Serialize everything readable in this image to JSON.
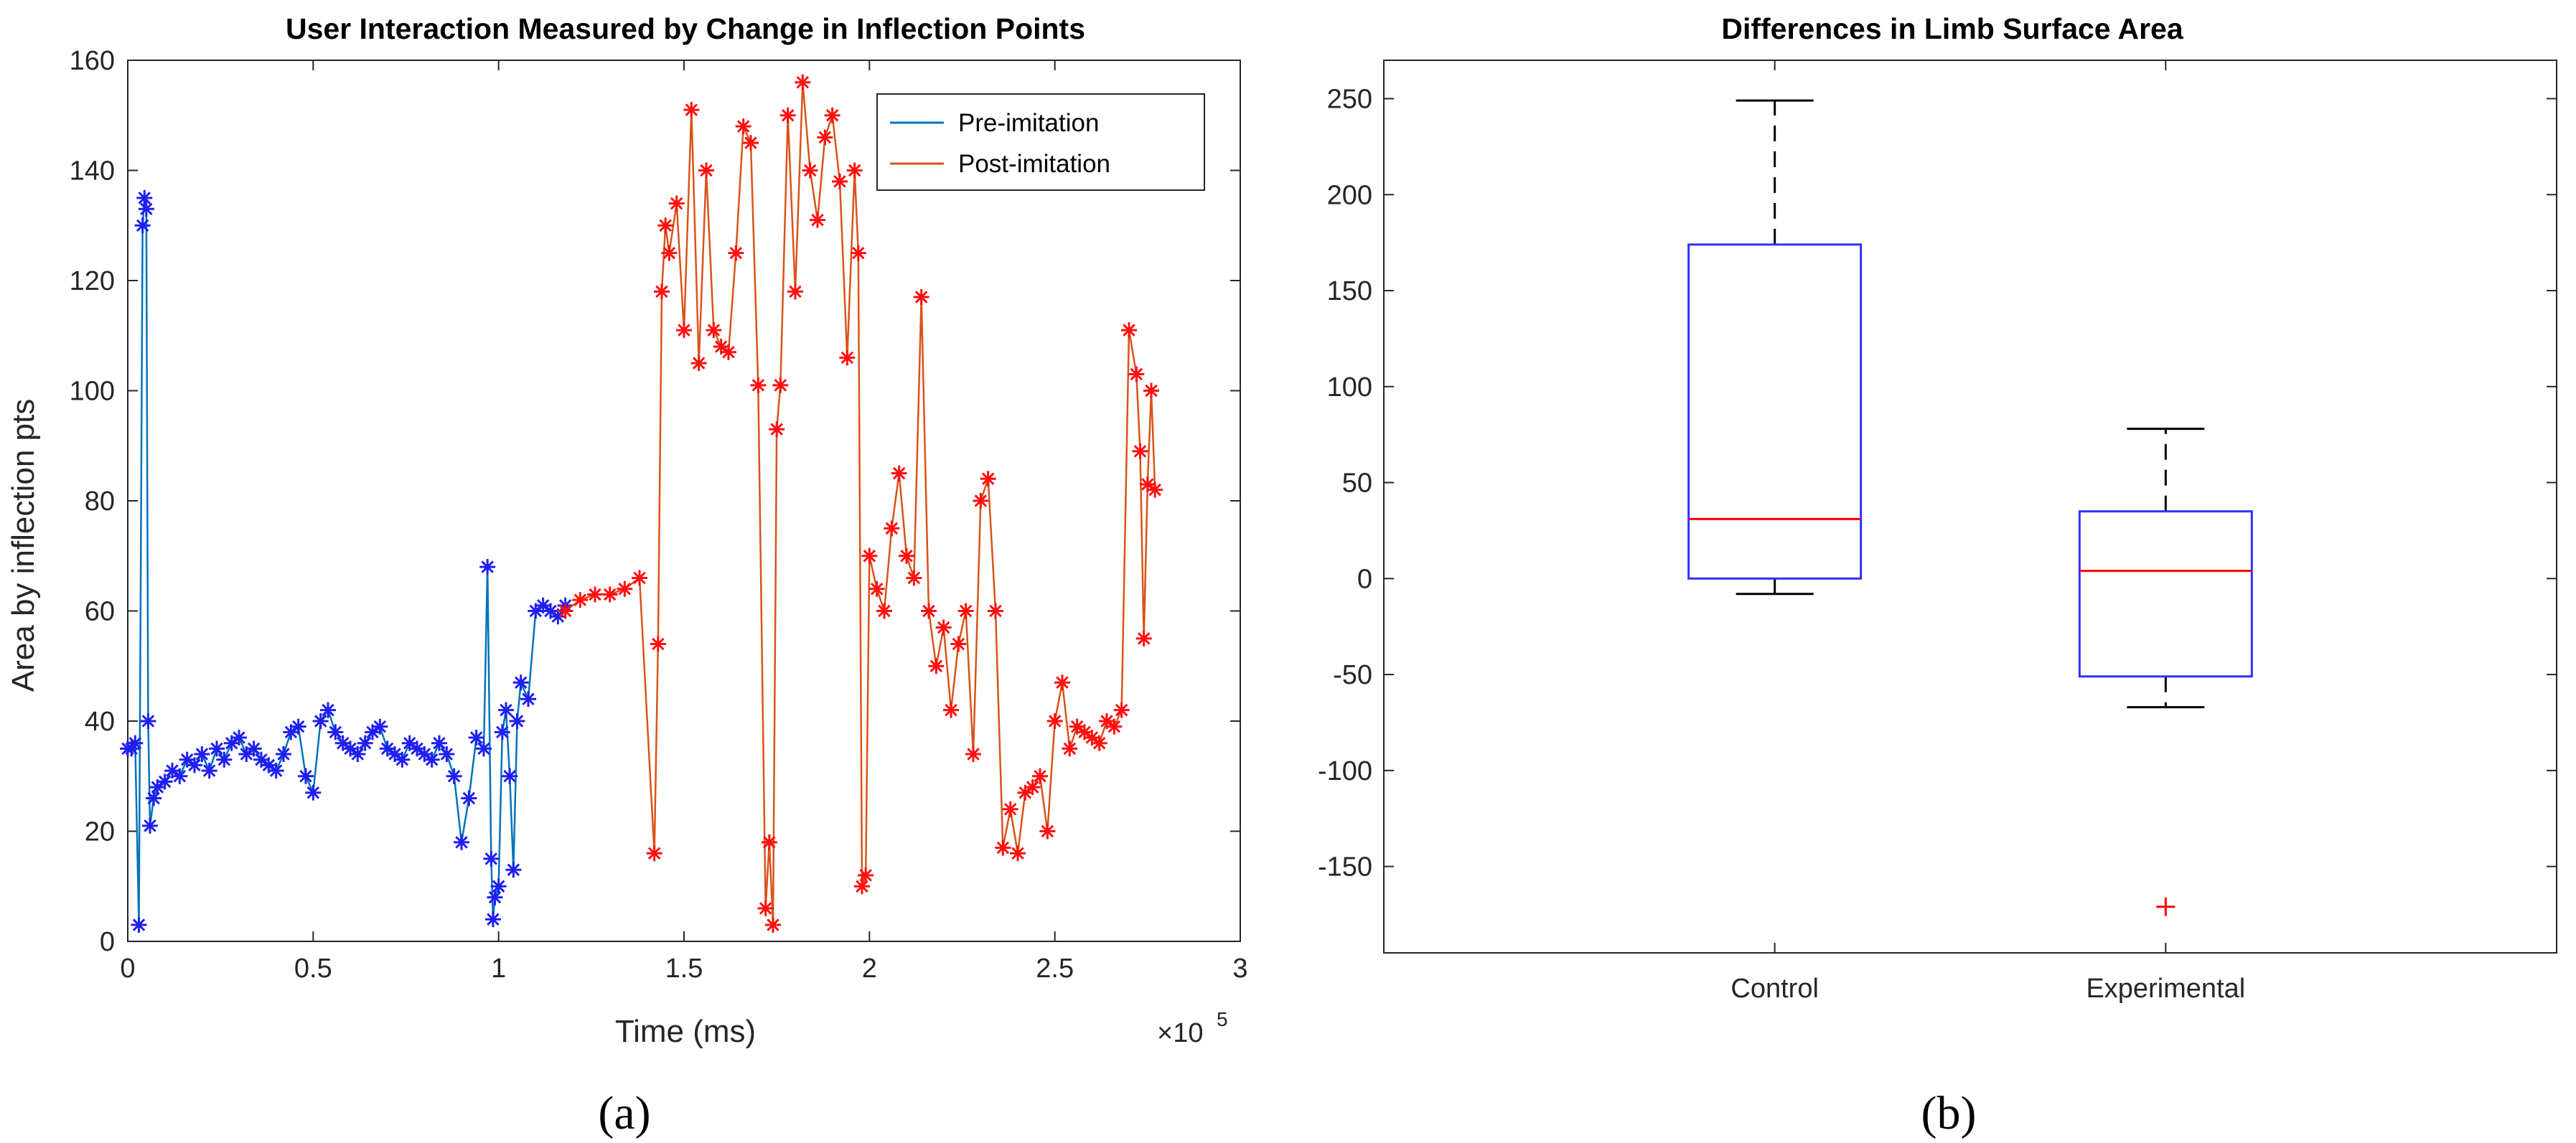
{
  "panel_a": {
    "sublabel": "(a)",
    "exponent_base": "×10",
    "exponent_power": "5"
  },
  "panel_b": {
    "sublabel": "(b)"
  },
  "colors": {
    "pre_line": "#0072BD",
    "pre_marker": "#1F1FF0",
    "post_line": "#D95319",
    "post_marker": "#FF1010",
    "box": "#3030FF",
    "median": "#FF0000",
    "outlier": "#FF0000",
    "whisker": "#000000"
  },
  "chart_data": [
    {
      "type": "line",
      "title": "User Interaction Measured by Change in Inflection Points",
      "xlabel": "Time (ms)",
      "ylabel": "Area by inflection pts",
      "xlim": [
        0,
        3
      ],
      "ylim": [
        0,
        160
      ],
      "xticks": [
        0,
        0.5,
        1,
        1.5,
        2,
        2.5,
        3
      ],
      "xtick_labels": [
        "0",
        "0.5",
        "1",
        "1.5",
        "2",
        "2.5",
        "3"
      ],
      "yticks": [
        0,
        20,
        40,
        60,
        80,
        100,
        120,
        140,
        160
      ],
      "ytick_labels": [
        "0",
        "20",
        "40",
        "60",
        "80",
        "100",
        "120",
        "140",
        "160"
      ],
      "x_scale_note": "×10^5",
      "legend": {
        "position": "top-right",
        "entries": [
          "Pre-imitation",
          "Post-imitation"
        ]
      },
      "series": [
        {
          "name": "Pre-imitation",
          "x": [
            0.0,
            0.01,
            0.02,
            0.03,
            0.04,
            0.045,
            0.05,
            0.055,
            0.06,
            0.07,
            0.08,
            0.1,
            0.12,
            0.14,
            0.16,
            0.18,
            0.2,
            0.22,
            0.24,
            0.26,
            0.28,
            0.3,
            0.32,
            0.34,
            0.36,
            0.38,
            0.4,
            0.42,
            0.44,
            0.46,
            0.48,
            0.5,
            0.52,
            0.54,
            0.56,
            0.58,
            0.6,
            0.62,
            0.64,
            0.66,
            0.68,
            0.7,
            0.72,
            0.74,
            0.76,
            0.78,
            0.8,
            0.82,
            0.84,
            0.86,
            0.88,
            0.9,
            0.92,
            0.94,
            0.96,
            0.97,
            0.98,
            0.985,
            0.99,
            1.0,
            1.01,
            1.02,
            1.03,
            1.04,
            1.05,
            1.06,
            1.08,
            1.1,
            1.12,
            1.14,
            1.16,
            1.18
          ],
          "y": [
            35,
            35,
            36,
            3,
            130,
            135,
            133,
            40,
            21,
            26,
            28,
            29,
            31,
            30,
            33,
            32,
            34,
            31,
            35,
            33,
            36,
            37,
            34,
            35,
            33,
            32,
            31,
            34,
            38,
            39,
            30,
            27,
            40,
            42,
            38,
            36,
            35,
            34,
            36,
            38,
            39,
            35,
            34,
            33,
            36,
            35,
            34,
            33,
            36,
            34,
            30,
            18,
            26,
            37,
            35,
            68,
            15,
            4,
            8,
            10,
            38,
            42,
            30,
            13,
            40,
            47,
            44,
            60,
            61,
            60,
            59,
            61
          ]
        },
        {
          "name": "Post-imitation",
          "x": [
            1.18,
            1.22,
            1.26,
            1.3,
            1.34,
            1.38,
            1.42,
            1.43,
            1.44,
            1.45,
            1.46,
            1.48,
            1.5,
            1.52,
            1.54,
            1.56,
            1.58,
            1.6,
            1.62,
            1.64,
            1.66,
            1.68,
            1.7,
            1.72,
            1.73,
            1.74,
            1.75,
            1.76,
            1.78,
            1.8,
            1.82,
            1.84,
            1.86,
            1.88,
            1.9,
            1.92,
            1.94,
            1.96,
            1.97,
            1.98,
            1.99,
            2.0,
            2.02,
            2.04,
            2.06,
            2.08,
            2.1,
            2.12,
            2.14,
            2.16,
            2.18,
            2.2,
            2.22,
            2.24,
            2.26,
            2.28,
            2.3,
            2.32,
            2.34,
            2.36,
            2.38,
            2.4,
            2.42,
            2.44,
            2.46,
            2.48,
            2.5,
            2.52,
            2.54,
            2.56,
            2.58,
            2.6,
            2.62,
            2.64,
            2.66,
            2.68,
            2.7,
            2.72,
            2.73,
            2.74,
            2.75,
            2.76,
            2.77
          ],
          "y": [
            60,
            62,
            63,
            63,
            64,
            66,
            16,
            54,
            118,
            130,
            125,
            134,
            111,
            151,
            105,
            140,
            111,
            108,
            107,
            125,
            148,
            145,
            101,
            6,
            18,
            3,
            93,
            101,
            150,
            118,
            156,
            140,
            131,
            146,
            150,
            138,
            106,
            140,
            125,
            10,
            12,
            70,
            64,
            60,
            75,
            85,
            70,
            66,
            117,
            60,
            50,
            57,
            42,
            54,
            60,
            34,
            80,
            84,
            60,
            17,
            24,
            16,
            27,
            28,
            30,
            20,
            40,
            47,
            35,
            39,
            38,
            37,
            36,
            40,
            39,
            42,
            111,
            103,
            89,
            55,
            83,
            100,
            82
          ]
        }
      ]
    },
    {
      "type": "boxplot",
      "title": "Differences in Limb Surface Area",
      "xlabel": "",
      "ylabel": "",
      "categories": [
        "Control",
        "Experimental"
      ],
      "ylim": [
        -195,
        270
      ],
      "yticks": [
        -150,
        -100,
        -50,
        0,
        50,
        100,
        150,
        200,
        250
      ],
      "ytick_labels": [
        "-150",
        "-100",
        "-50",
        "0",
        "50",
        "100",
        "150",
        "200",
        "250"
      ],
      "boxes": [
        {
          "name": "Control",
          "whisker_low": -8,
          "q1": 0,
          "median": 31,
          "q3": 174,
          "whisker_high": 249,
          "outliers": []
        },
        {
          "name": "Experimental",
          "whisker_low": -67,
          "q1": -51,
          "median": 4,
          "q3": 35,
          "whisker_high": 78,
          "outliers": [
            -171
          ]
        }
      ]
    }
  ]
}
